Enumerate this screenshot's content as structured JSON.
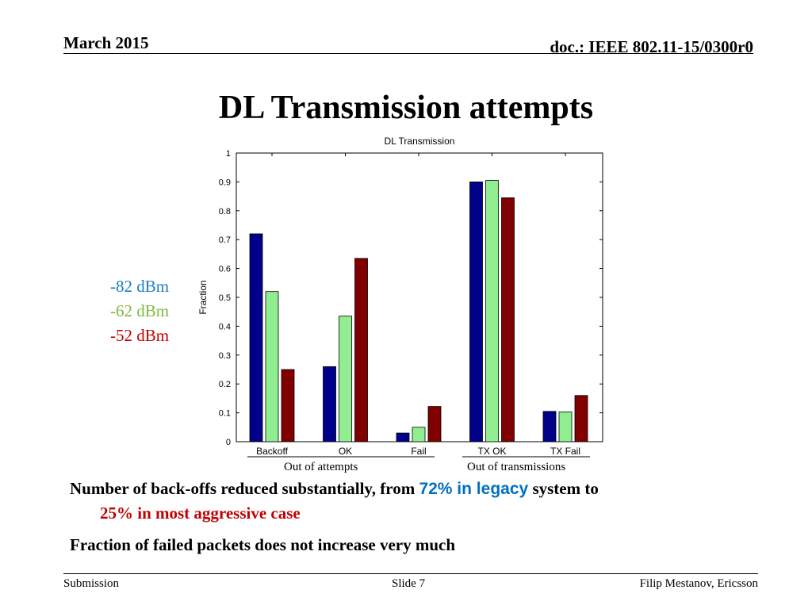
{
  "header": {
    "date": "March 2015",
    "doc": "doc.: IEEE 802.11-15/0300r0"
  },
  "slide_title": "DL Transmission attempts",
  "legend": [
    {
      "label": "-82 dBm",
      "color": "#1a7fc0"
    },
    {
      "label": "-62 dBm",
      "color": "#7cba3c"
    },
    {
      "label": "-52 dBm",
      "color": "#c00000"
    }
  ],
  "chart_data": {
    "type": "bar",
    "title": "DL Transmission",
    "ylabel": "Fraction",
    "xlabel": "",
    "ylim": [
      0,
      1
    ],
    "yticks": [
      "0",
      "0.1",
      "0.2",
      "0.3",
      "0.4",
      "0.5",
      "0.6",
      "0.7",
      "0.8",
      "0.9",
      "1"
    ],
    "categories": [
      "Backoff",
      "OK",
      "Fail",
      "TX OK",
      "TX Fail"
    ],
    "series": [
      {
        "color": "#00008b",
        "values": [
          0.72,
          0.26,
          0.03,
          0.9,
          0.105
        ]
      },
      {
        "color": "#90ee90",
        "values": [
          0.52,
          0.435,
          0.05,
          0.905,
          0.103
        ]
      },
      {
        "color": "#800000",
        "values": [
          0.25,
          0.635,
          0.122,
          0.845,
          0.16
        ]
      }
    ],
    "group_labels": [
      "Out of attempts",
      "Out of transmissions"
    ]
  },
  "bullets": {
    "b1_start": "Number of back-offs reduced substantially, from ",
    "b1_highlight": "72% in legacy",
    "b1_end": " system to",
    "b1_line2": "25% in most aggressive case",
    "b2": "Fraction of failed packets does not increase very much"
  },
  "footer": {
    "left": "Submission",
    "center": "Slide 7",
    "right": "Filip Mestanov, Ericsson"
  }
}
